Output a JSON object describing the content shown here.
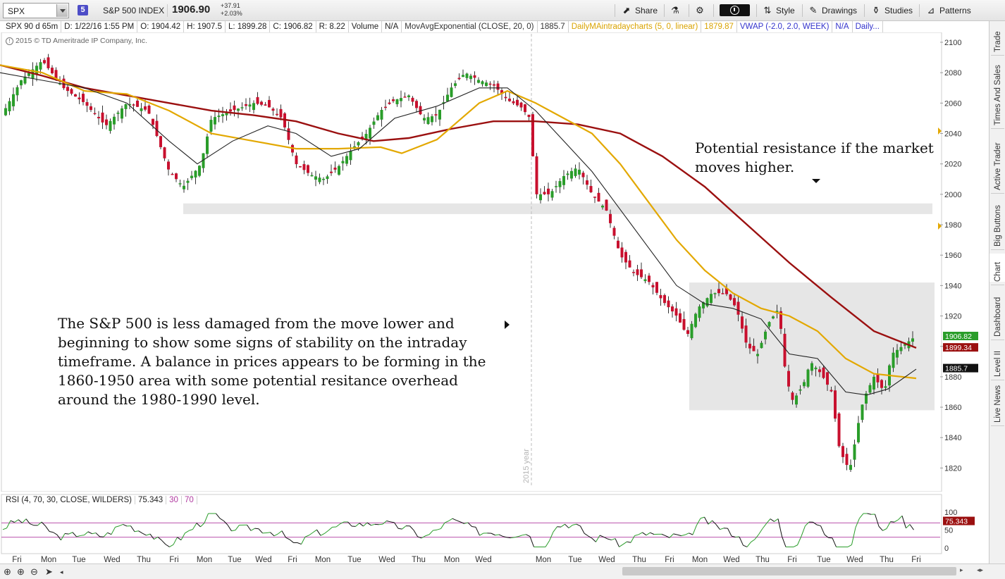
{
  "toolbar": {
    "symbol": "SPX",
    "link_badge": "5",
    "instrument_name": "S&P 500 INDEX",
    "last_price": "1906.90",
    "net_change": "+37.91",
    "pct_change": "+2.03%",
    "share_label": "Share",
    "style_label": "Style",
    "drawings_label": "Drawings",
    "studies_label": "Studies",
    "patterns_label": "Patterns"
  },
  "info": {
    "chart_spec": "SPX 90 d 65m",
    "date": "D: 1/22/16 1:55 PM",
    "open": "O: 1904.42",
    "high": "H: 1907.5",
    "low": "L: 1899.28",
    "close": "C: 1906.82",
    "range": "R: 8.22",
    "volume_label": "Volume",
    "volume_value": "N/A",
    "ema_study": "MovAvgExponential (CLOSE, 20, 0)",
    "ema_value": "1885.7",
    "daily_ma_study": "DailyMAintradaycharts (5, 0, linear)",
    "daily_ma_value": "1879.87",
    "vwap_study": "VWAP (-2.0, 2.0, WEEK)",
    "vwap_value": "N/A",
    "more_study": "Daily..."
  },
  "copyright": "2015 © TD Ameritrade IP Company, Inc.",
  "annotations": {
    "resistance": "Potential resistance if the market moves higher.",
    "body": "The S&P 500 is less damaged from the move lower and beginning to show some signs of stability on the intraday timeframe.  A balance in prices appears to be forming in the 1860-1950 area with some potential resitance overhead around the 1980-1990 level."
  },
  "year_marker": "2015 year",
  "rsi": {
    "study": "RSI (4, 70, 30, CLOSE, WILDERS)",
    "value": "75.343",
    "low_level": "30",
    "high_level": "70"
  },
  "side_tabs": [
    "Trade",
    "Times And Sales",
    "Active Trader",
    "Big Buttons",
    "Chart",
    "Dashboard",
    "Level II",
    "Live News"
  ],
  "colors": {
    "up": "#2a9d2a",
    "down": "#c8102e",
    "ema20": "#222222",
    "daily_ma_yellow": "#e3a800",
    "daily_ma_red": "#9b1010",
    "rsi_up": "#2a9d2a",
    "rsi_down": "#111111",
    "rsi_levels": "#b03aa0",
    "zone_fill": "#e6e6e6"
  },
  "chart_data": {
    "type": "candlestick",
    "title": "",
    "ylim": [
      1808,
      2106
    ],
    "y_ticks": [
      1820,
      1840,
      1860,
      1880,
      1900,
      1920,
      1940,
      1960,
      1980,
      2000,
      2020,
      2040,
      2060,
      2080,
      2100
    ],
    "x_labels": [
      "Fri",
      "Mon",
      "Tue",
      "Wed",
      "Thu",
      "Fri",
      "Mon",
      "Tue",
      "Wed",
      "Fri",
      "Mon",
      "Tue",
      "Wed",
      "Thu",
      "Mon",
      "Wed",
      "Mon",
      "Tue",
      "Wed",
      "Thu",
      "Fri",
      "Mon",
      "Wed",
      "Thu",
      "Fri",
      "Tue",
      "Wed",
      "Thu",
      "Fri"
    ],
    "price_labels": [
      {
        "value": "1906.82",
        "level": 1906.82,
        "color": "#2a9d2a"
      },
      {
        "value": "1899.34",
        "level": 1899.34,
        "color": "#9b1010"
      },
      {
        "value": "1885.7",
        "level": 1885.7,
        "color": "#111111"
      }
    ],
    "zones": [
      {
        "y_top": 1994,
        "y_bottom": 1987
      },
      {
        "y_top": 1942,
        "y_bottom": 1858
      }
    ],
    "close_path": [
      [
        0,
        2050
      ],
      [
        30,
        2075
      ],
      [
        60,
        2088
      ],
      [
        90,
        2070
      ],
      [
        120,
        2060
      ],
      [
        150,
        2045
      ],
      [
        180,
        2060
      ],
      [
        210,
        2055
      ],
      [
        240,
        2015
      ],
      [
        260,
        2005
      ],
      [
        285,
        2020
      ],
      [
        300,
        2050
      ],
      [
        330,
        2055
      ],
      [
        360,
        2060
      ],
      [
        380,
        2058
      ],
      [
        400,
        2050
      ],
      [
        420,
        2020
      ],
      [
        440,
        2013
      ],
      [
        460,
        2010
      ],
      [
        480,
        2018
      ],
      [
        500,
        2030
      ],
      [
        520,
        2040
      ],
      [
        540,
        2055
      ],
      [
        560,
        2062
      ],
      [
        580,
        2065
      ],
      [
        600,
        2050
      ],
      [
        620,
        2052
      ],
      [
        640,
        2070
      ],
      [
        660,
        2080
      ],
      [
        680,
        2075
      ],
      [
        700,
        2072
      ],
      [
        720,
        2062
      ],
      [
        740,
        2057
      ],
      [
        752,
        2050
      ],
      [
        760,
        2000
      ],
      [
        780,
        2000
      ],
      [
        800,
        2012
      ],
      [
        820,
        2018
      ],
      [
        840,
        2000
      ],
      [
        860,
        1990
      ],
      [
        880,
        1960
      ],
      [
        900,
        1948
      ],
      [
        920,
        1943
      ],
      [
        940,
        1930
      ],
      [
        960,
        1920
      ],
      [
        975,
        1907
      ],
      [
        990,
        1925
      ],
      [
        1010,
        1935
      ],
      [
        1030,
        1935
      ],
      [
        1045,
        1925
      ],
      [
        1060,
        1900
      ],
      [
        1075,
        1895
      ],
      [
        1090,
        1915
      ],
      [
        1105,
        1925
      ],
      [
        1115,
        1880
      ],
      [
        1125,
        1864
      ],
      [
        1140,
        1875
      ],
      [
        1150,
        1890
      ],
      [
        1165,
        1882
      ],
      [
        1180,
        1870
      ],
      [
        1190,
        1835
      ],
      [
        1200,
        1822
      ],
      [
        1208,
        1822
      ],
      [
        1215,
        1843
      ],
      [
        1225,
        1865
      ],
      [
        1240,
        1880
      ],
      [
        1255,
        1870
      ],
      [
        1265,
        1895
      ],
      [
        1280,
        1900
      ],
      [
        1300,
        1907
      ]
    ],
    "ema20_path": [
      [
        0,
        2080
      ],
      [
        60,
        2075
      ],
      [
        120,
        2070
      ],
      [
        180,
        2060
      ],
      [
        240,
        2035
      ],
      [
        280,
        2020
      ],
      [
        330,
        2035
      ],
      [
        380,
        2045
      ],
      [
        420,
        2040
      ],
      [
        470,
        2025
      ],
      [
        510,
        2030
      ],
      [
        560,
        2050
      ],
      [
        620,
        2058
      ],
      [
        680,
        2070
      ],
      [
        720,
        2070
      ],
      [
        760,
        2055
      ],
      [
        800,
        2035
      ],
      [
        840,
        2015
      ],
      [
        880,
        1990
      ],
      [
        920,
        1965
      ],
      [
        960,
        1940
      ],
      [
        1000,
        1928
      ],
      [
        1040,
        1925
      ],
      [
        1080,
        1918
      ],
      [
        1120,
        1895
      ],
      [
        1160,
        1892
      ],
      [
        1200,
        1870
      ],
      [
        1230,
        1868
      ],
      [
        1260,
        1872
      ],
      [
        1300,
        1885
      ]
    ],
    "daily_ma_yellow_path": [
      [
        0,
        2085
      ],
      [
        60,
        2080
      ],
      [
        120,
        2068
      ],
      [
        180,
        2066
      ],
      [
        240,
        2055
      ],
      [
        300,
        2040
      ],
      [
        360,
        2035
      ],
      [
        420,
        2030
      ],
      [
        480,
        2030
      ],
      [
        540,
        2031
      ],
      [
        570,
        2027
      ],
      [
        620,
        2036
      ],
      [
        680,
        2060
      ],
      [
        720,
        2068
      ],
      [
        760,
        2060
      ],
      [
        800,
        2050
      ],
      [
        840,
        2040
      ],
      [
        880,
        2020
      ],
      [
        920,
        1995
      ],
      [
        960,
        1970
      ],
      [
        1000,
        1950
      ],
      [
        1040,
        1935
      ],
      [
        1080,
        1925
      ],
      [
        1120,
        1920
      ],
      [
        1160,
        1910
      ],
      [
        1200,
        1892
      ],
      [
        1240,
        1882
      ],
      [
        1300,
        1879
      ]
    ],
    "daily_ma_red_path": [
      [
        0,
        2085
      ],
      [
        60,
        2078
      ],
      [
        120,
        2070
      ],
      [
        180,
        2065
      ],
      [
        240,
        2060
      ],
      [
        300,
        2055
      ],
      [
        360,
        2052
      ],
      [
        420,
        2048
      ],
      [
        480,
        2040
      ],
      [
        530,
        2035
      ],
      [
        580,
        2037
      ],
      [
        640,
        2043
      ],
      [
        700,
        2048
      ],
      [
        760,
        2048
      ],
      [
        820,
        2046
      ],
      [
        880,
        2040
      ],
      [
        940,
        2025
      ],
      [
        1000,
        2005
      ],
      [
        1060,
        1980
      ],
      [
        1120,
        1955
      ],
      [
        1180,
        1932
      ],
      [
        1240,
        1910
      ],
      [
        1300,
        1899
      ]
    ],
    "rsi_ylim": [
      0,
      100
    ],
    "rsi_ticks": [
      0,
      50,
      100
    ],
    "rsi_levels": [
      30,
      70
    ]
  }
}
